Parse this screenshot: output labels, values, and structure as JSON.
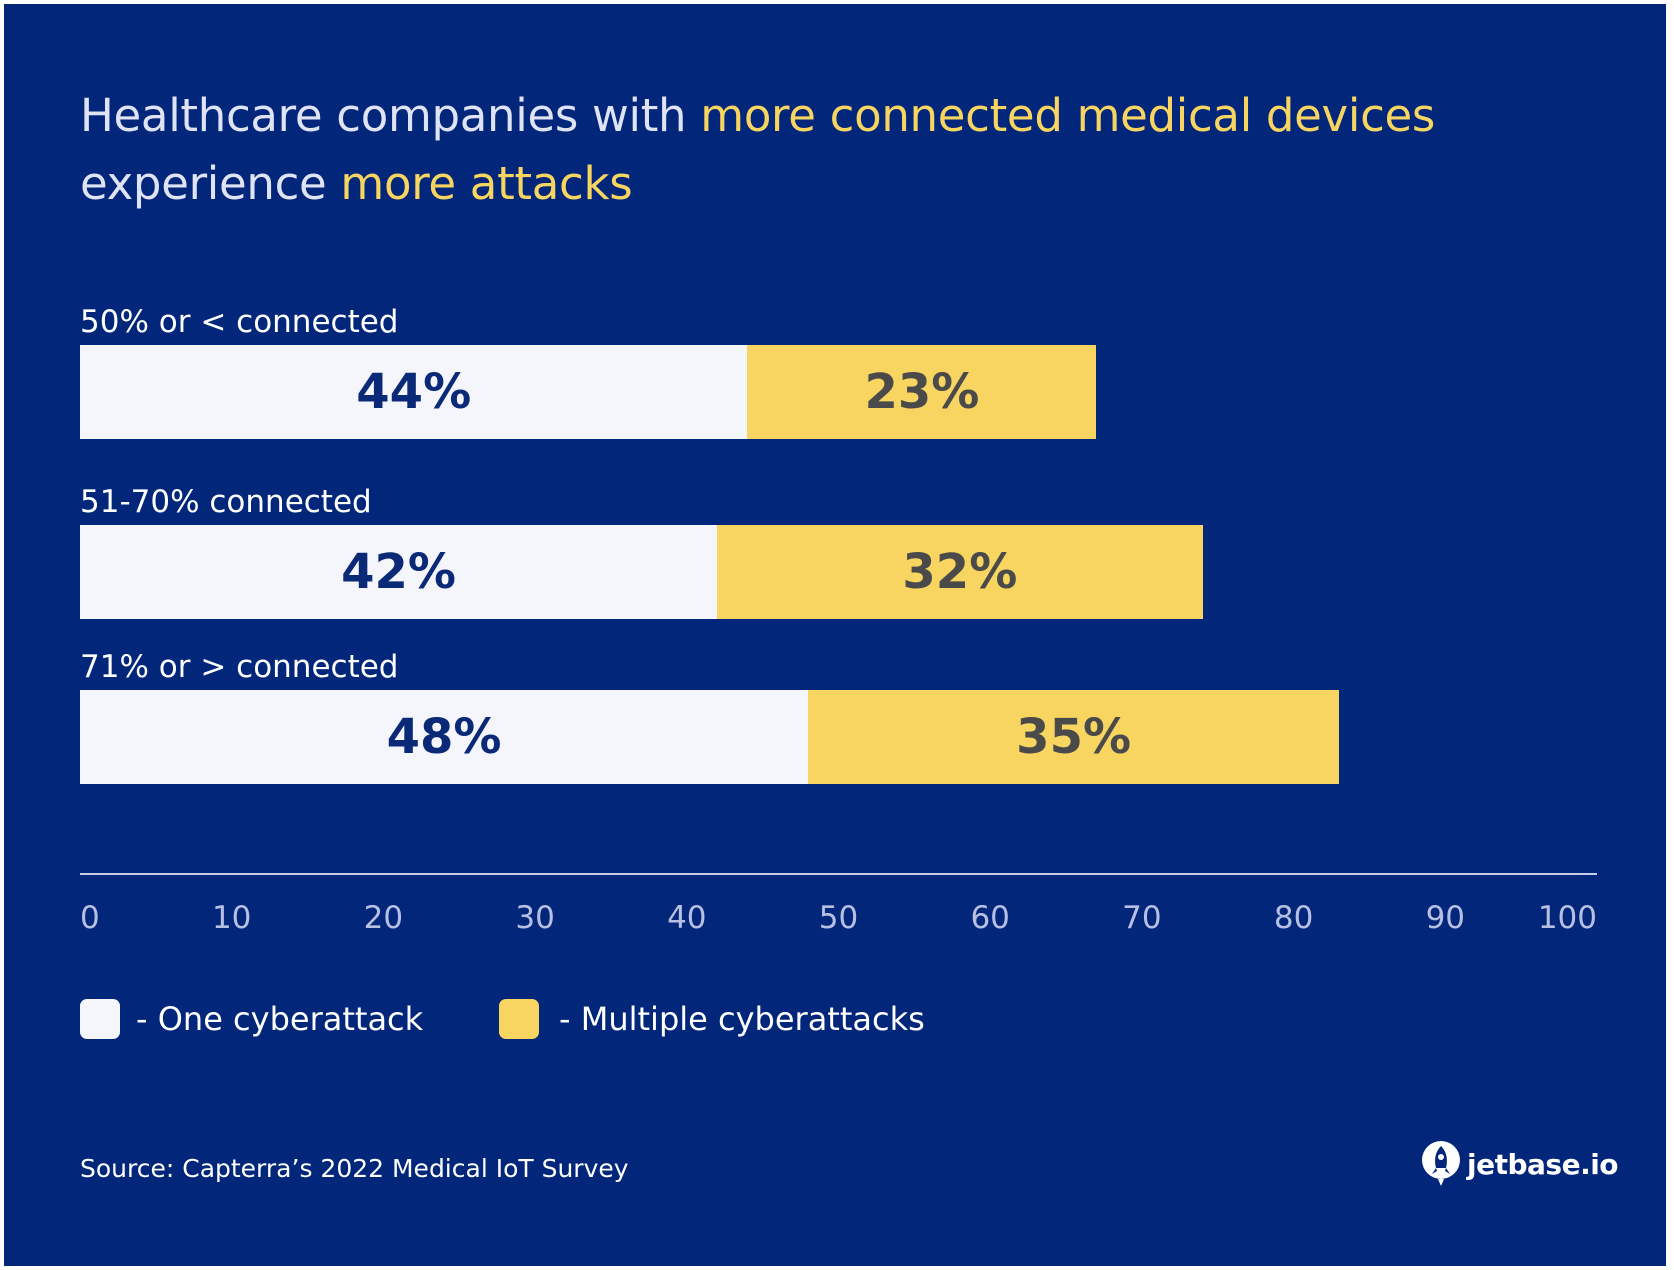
{
  "title": {
    "part1": "Healthcare companies with ",
    "part2": "more connected medical devices",
    "part3": "experience ",
    "part4": "more attacks"
  },
  "colors": {
    "background": "#01267a",
    "one": "#f5f5fc",
    "multiple": "#f8d560",
    "highlight": "#f8d560"
  },
  "chart_data": {
    "type": "bar",
    "orientation": "horizontal",
    "stacked": true,
    "title": "Healthcare companies with more connected medical devices experience more attacks",
    "categories": [
      "50% or < connected",
      "51-70% connected",
      "71% or > connected"
    ],
    "series": [
      {
        "name": "One cyberattack",
        "values": [
          44,
          42,
          48
        ],
        "labels": [
          "44%",
          "42%",
          "48%"
        ]
      },
      {
        "name": "Multiple cyberattacks",
        "values": [
          23,
          32,
          35
        ],
        "labels": [
          "23%",
          "32%",
          "35%"
        ]
      }
    ],
    "xlim": [
      0,
      100
    ],
    "xticks": [
      "0",
      "10",
      "20",
      "30",
      "40",
      "50",
      "60",
      "70",
      "80",
      "90",
      "100"
    ],
    "legend": [
      {
        "label": "- One cyberattack"
      },
      {
        "label": "- Multiple cyberattacks"
      }
    ],
    "legend_position": "bottom-left",
    "grid": false
  },
  "source": "Source: Capterra’s 2022 Medical IoT Survey",
  "logo": {
    "text": "jetbase.io",
    "icon": "rocket-icon"
  }
}
